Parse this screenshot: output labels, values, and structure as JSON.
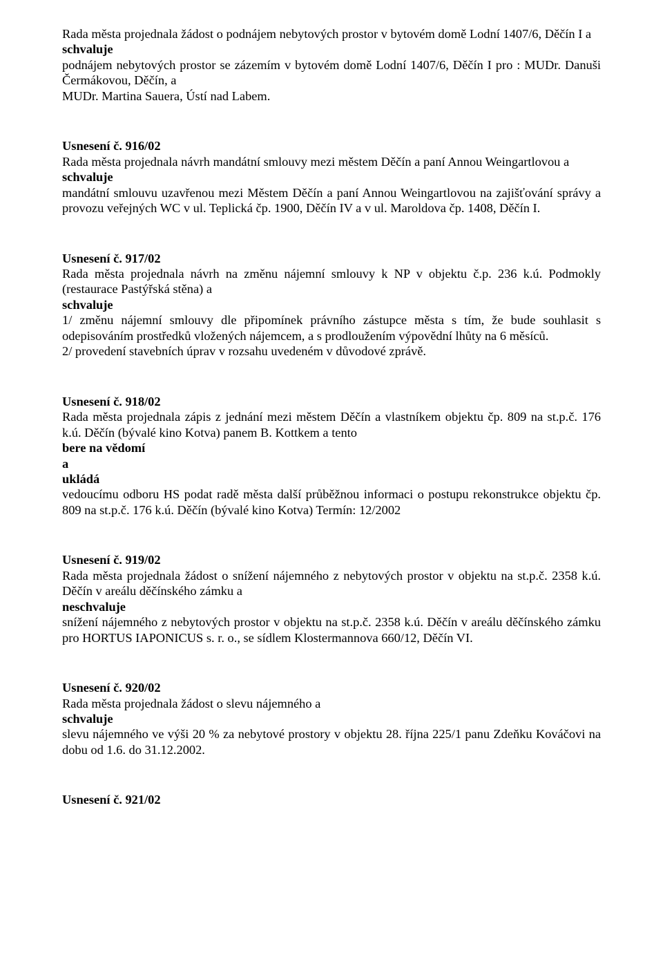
{
  "b0": {
    "p1": "Rada města projednala žádost o podnájem nebytových prostor v bytovém domě Lodní 1407/6, Děčín I a",
    "schvaluje": "schvaluje",
    "p2": "podnájem nebytových prostor se zázemím v bytovém domě Lodní 1407/6, Děčín I pro : MUDr. Danuši Čermákovou, Děčín, a",
    "p3": "MUDr. Martina Sauera, Ústí nad Labem."
  },
  "b1": {
    "h": "Usnesení č. 916/02",
    "p1": "Rada města projednala návrh mandátní smlouvy mezi městem Děčín a paní Annou Weingartlovou a",
    "schvaluje": "schvaluje",
    "p2": "mandátní smlouvu uzavřenou mezi Městem Děčín a paní Annou Weingartlovou na zajišťování správy a provozu veřejných WC v ul. Teplická čp. 1900, Děčín IV a v ul. Maroldova čp. 1408, Děčín I."
  },
  "b2": {
    "h": "Usnesení č. 917/02",
    "p1": "Rada města projednala návrh na změnu nájemní smlouvy k NP v objektu č.p. 236 k.ú. Podmokly (restaurace Pastýřská stěna) a",
    "schvaluje": "schvaluje",
    "p2": "1/ změnu nájemní smlouvy dle připomínek právního zástupce města s tím, že bude souhlasit s odepisováním prostředků vložených nájemcem, a s prodloužením výpovědní lhůty na 6 měsíců.",
    "p3": "2/ provedení stavebních úprav v rozsahu uvedeném v důvodové zprávě."
  },
  "b3": {
    "h": "Usnesení č. 918/02",
    "p1": "Rada města projednala zápis z jednání mezi městem Děčín a vlastníkem objektu čp. 809 na st.p.č. 176 k.ú. Děčín (bývalé kino Kotva) panem B. Kottkem a tento",
    "bere": "bere na vědomí",
    "a": "a",
    "uklada": "ukládá",
    "p2": "vedoucímu odboru HS podat radě města další průběžnou informaci o postupu rekonstrukce objektu čp. 809 na st.p.č. 176 k.ú. Děčín (bývalé kino Kotva) Termín: 12/2002"
  },
  "b4": {
    "h": "Usnesení č. 919/02",
    "p1": "Rada města projednala žádost o snížení nájemného z nebytových prostor v objektu na st.p.č. 2358 k.ú. Děčín v areálu děčínského zámku a",
    "neschvaluje": "neschvaluje",
    "p2": "snížení nájemného z nebytových prostor v objektu na st.p.č. 2358 k.ú. Děčín v areálu děčínského zámku pro HORTUS IAPONICUS s. r. o., se sídlem Klostermannova 660/12, Děčín VI."
  },
  "b5": {
    "h": "Usnesení č. 920/02",
    "p1": "Rada města projednala žádost o slevu nájemného a",
    "schvaluje": "schvaluje",
    "p2": "slevu nájemného ve výši 20 % za nebytové prostory v objektu 28. října 225/1 panu Zdeňku Kováčovi na dobu od 1.6. do 31.12.2002."
  },
  "b6": {
    "h": "Usnesení č. 921/02"
  }
}
